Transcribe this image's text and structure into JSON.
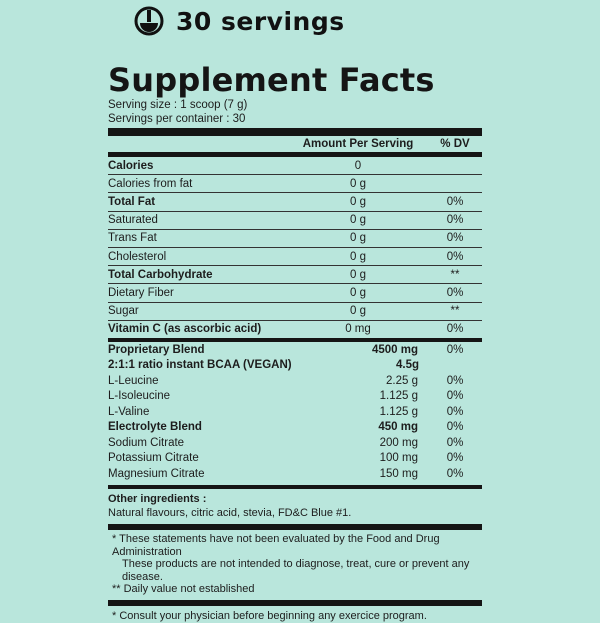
{
  "header": {
    "servings_label": "30 servings",
    "icon": "scoop-icon"
  },
  "panel": {
    "title": "Supplement Facts",
    "serving_size": "Serving size : 1 scoop (7 g)",
    "servings_per_container": "Servings per container : 30",
    "col_amount": "Amount Per Serving",
    "col_dv": "% DV"
  },
  "nutrients": [
    {
      "name": "Calories",
      "amount": "0",
      "dv": "",
      "bold": true
    },
    {
      "name": "Calories from fat",
      "amount": "0 g",
      "dv": "",
      "bold": false
    },
    {
      "name": "Total Fat",
      "amount": "0 g",
      "dv": "0%",
      "bold": true
    },
    {
      "name": "Saturated",
      "amount": "0 g",
      "dv": "0%",
      "bold": false
    },
    {
      "name": "Trans Fat",
      "amount": "0 g",
      "dv": "0%",
      "bold": false
    },
    {
      "name": "Cholesterol",
      "amount": "0 g",
      "dv": "0%",
      "bold": false
    },
    {
      "name": "Total Carbohydrate",
      "amount": "0 g",
      "dv": "**",
      "bold": true
    },
    {
      "name": "Dietary Fiber",
      "amount": "0 g",
      "dv": "0%",
      "bold": false
    },
    {
      "name": "Sugar",
      "amount": "0 g",
      "dv": "**",
      "bold": false
    },
    {
      "name": "Vitamin C (as ascorbic acid)",
      "amount": "0 mg",
      "dv": "0%",
      "bold": true
    }
  ],
  "blend": [
    {
      "name": "Proprietary Blend",
      "amount": "4500 mg",
      "dv": "0%",
      "bold": true
    },
    {
      "name": "2:1:1 ratio instant BCAA (VEGAN)",
      "amount": "4.5g",
      "dv": "",
      "bold": true
    },
    {
      "name": "L-Leucine",
      "amount": "2.25 g",
      "dv": "0%",
      "bold": false
    },
    {
      "name": "L-Isoleucine",
      "amount": "1.125 g",
      "dv": "0%",
      "bold": false
    },
    {
      "name": "L-Valine",
      "amount": "1.125 g",
      "dv": "0%",
      "bold": false
    },
    {
      "name": "Electrolyte Blend",
      "amount": "450 mg",
      "dv": "0%",
      "bold": true
    },
    {
      "name": "Sodium Citrate",
      "amount": "200 mg",
      "dv": "0%",
      "bold": false
    },
    {
      "name": "Potassium Citrate",
      "amount": "100 mg",
      "dv": "0%",
      "bold": false
    },
    {
      "name": "Magnesium Citrate",
      "amount": "150 mg",
      "dv": "0%",
      "bold": false
    }
  ],
  "other": {
    "label": "Other ingredients :",
    "text": "Natural flavours, citric acid, stevia, FD&C Blue #1."
  },
  "notes": {
    "line1": "* These statements have not been evaluated by the Food and Drug Administration",
    "line2": "These products are not intended to diagnose, treat, cure or prevent any disease.",
    "line3": "** Daily value not established"
  },
  "consult": "* Consult your physician before beginning any exercice program."
}
